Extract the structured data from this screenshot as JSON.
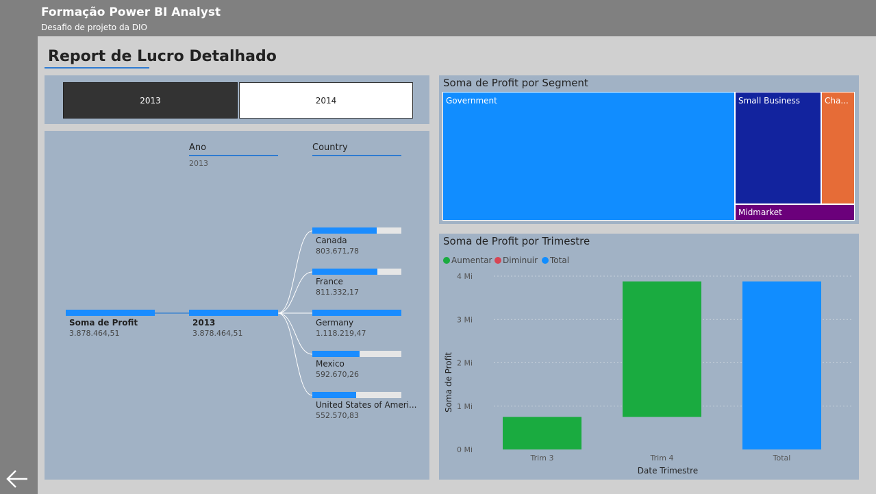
{
  "header": {
    "title": "Formação Power BI Analyst",
    "subtitle": "Desafio de projeto da DIO"
  },
  "page": {
    "title": "Report de Lucro Detalhado"
  },
  "slicer": {
    "options": [
      "2013",
      "2014"
    ],
    "selected": "2013"
  },
  "decomposition_tree": {
    "levels": [
      {
        "header": "Ano",
        "selection": "2013"
      },
      {
        "header": "Country",
        "selection": ""
      }
    ],
    "root": {
      "label": "Soma de Profit",
      "value": "3.878.464,51"
    },
    "year_node": {
      "label": "2013",
      "value": "3.878.464,51"
    },
    "countries": [
      {
        "label": "Canada",
        "value": "803.671,78",
        "fraction": 0.72
      },
      {
        "label": "France",
        "value": "811.332,17",
        "fraction": 0.73
      },
      {
        "label": "Germany",
        "value": "1.118.219,47",
        "fraction": 1.0
      },
      {
        "label": "Mexico",
        "value": "592.670,26",
        "fraction": 0.53
      },
      {
        "label": "United States of Ameri...",
        "value": "552.570,83",
        "fraction": 0.49
      }
    ]
  },
  "treemap": {
    "title": "Soma de Profit por Segment",
    "cells": [
      {
        "label": "Government",
        "color": "#118dff"
      },
      {
        "label": "Small Business",
        "color": "#12239e"
      },
      {
        "label": "Cha...",
        "color": "#e66c37"
      },
      {
        "label": "Midmarket",
        "color": "#6b007b"
      }
    ]
  },
  "waterfall": {
    "title": "Soma de Profit por Trimestre",
    "legend": [
      {
        "label": "Aumentar",
        "color": "#1aab40"
      },
      {
        "label": "Diminuir",
        "color": "#d64554"
      },
      {
        "label": "Total",
        "color": "#118dff"
      }
    ]
  },
  "chart_data": {
    "type": "bar",
    "subtype": "waterfall",
    "title": "Soma de Profit por Trimestre",
    "xlabel": "Date Trimestre",
    "ylabel": "Soma de Profit",
    "categories": [
      "Trim 3",
      "Trim 4",
      "Total"
    ],
    "bars": [
      {
        "category": "Trim 3",
        "start": 0,
        "end": 0.75,
        "kind": "Aumentar"
      },
      {
        "category": "Trim 4",
        "start": 0.75,
        "end": 3.878,
        "kind": "Aumentar"
      },
      {
        "category": "Total",
        "start": 0,
        "end": 3.878,
        "kind": "Total"
      }
    ],
    "y_ticks": [
      {
        "value": 0,
        "label": "0 Mi"
      },
      {
        "value": 1,
        "label": "1 Mi"
      },
      {
        "value": 2,
        "label": "2 Mi"
      },
      {
        "value": 3,
        "label": "3 Mi"
      },
      {
        "value": 4,
        "label": "4 Mi"
      }
    ],
    "ylim": [
      0,
      4
    ],
    "grid": true,
    "legend_position": "top-left",
    "colors": {
      "Aumentar": "#1aab40",
      "Diminuir": "#d64554",
      "Total": "#118dff"
    }
  }
}
